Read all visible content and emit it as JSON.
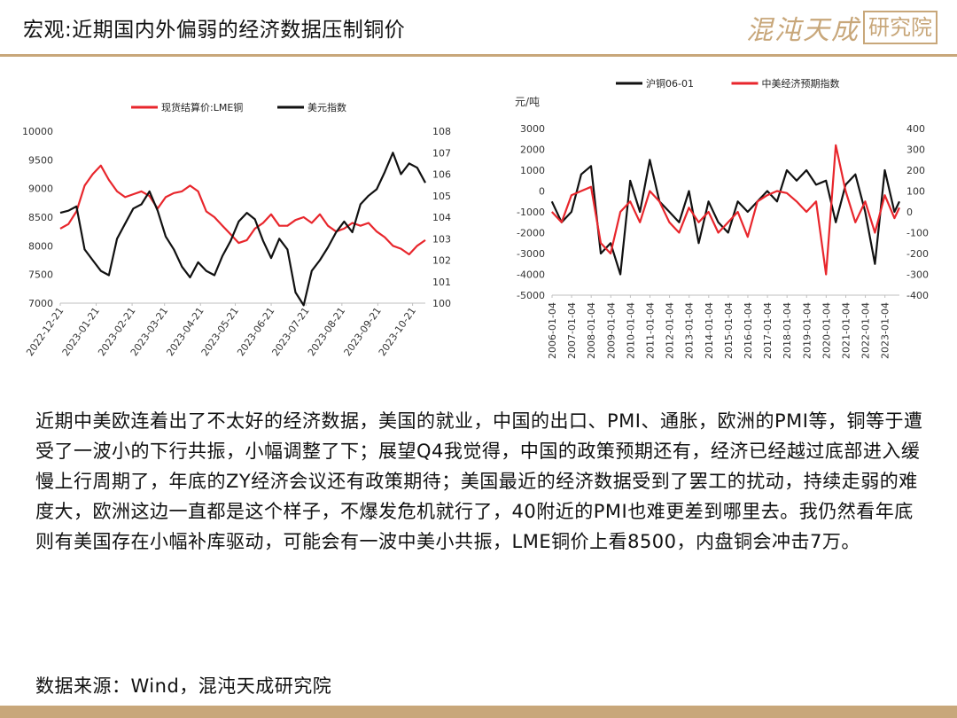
{
  "page": {
    "title": "宏观:近期国内外偏弱的经济数据压制铜价",
    "logo_text": "混沌天成",
    "logo_box_text": "研究院",
    "body_text": "近期中美欧连着出了不太好的经济数据，美国的就业，中国的出口、PMI、通胀，欧洲的PMI等，铜等于遭受了一波小的下行共振，小幅调整了下；展望Q4我觉得，中国的政策预期还有，经济已经越过底部进入缓慢上行周期了，年底的ZY经济会议还有政策期待；美国最近的经济数据受到了罢工的扰动，持续走弱的难度大，欧洲这边一直都是这个样子，不爆发危机就行了，40附近的PMI也难更差到哪里去。我仍然看年底则有美国存在小幅补库驱动，可能会有一波中美小共振，LME铜价上看8500，内盘铜会冲击7万。",
    "source": "数据来源：Wind，混沌天成研究院",
    "accent_color": "#c8a77a"
  },
  "chart_data": [
    {
      "type": "line",
      "title": "",
      "legend_position": "top",
      "x_tick_labels": [
        "2022-12-21",
        "2023-01-21",
        "2023-02-21",
        "2023-03-21",
        "2023-04-21",
        "2023-05-21",
        "2023-06-21",
        "2023-07-21",
        "2023-08-21",
        "2023-09-21",
        "2023-10-21"
      ],
      "x_start": "2022-12-21",
      "x_end": "2023-11-01",
      "y_left": {
        "ylim": [
          7000,
          10000
        ],
        "ticks": [
          7000,
          7500,
          8000,
          8500,
          9000,
          9500,
          10000
        ]
      },
      "y_right": {
        "ylim": [
          100,
          108
        ],
        "ticks": [
          100,
          101,
          102,
          103,
          104,
          105,
          106,
          107,
          108
        ]
      },
      "series": [
        {
          "name": "现货结算价:LME铜",
          "color": "#e8262c",
          "axis": "left",
          "x": [
            "2022-12-21",
            "2022-12-28",
            "2023-01-04",
            "2023-01-11",
            "2023-01-18",
            "2023-01-25",
            "2023-02-01",
            "2023-02-08",
            "2023-02-15",
            "2023-02-22",
            "2023-03-01",
            "2023-03-08",
            "2023-03-15",
            "2023-03-22",
            "2023-03-29",
            "2023-04-05",
            "2023-04-12",
            "2023-04-19",
            "2023-04-26",
            "2023-05-03",
            "2023-05-10",
            "2023-05-17",
            "2023-05-24",
            "2023-05-31",
            "2023-06-07",
            "2023-06-14",
            "2023-06-21",
            "2023-06-28",
            "2023-07-05",
            "2023-07-12",
            "2023-07-19",
            "2023-07-26",
            "2023-08-02",
            "2023-08-09",
            "2023-08-16",
            "2023-08-23",
            "2023-08-30",
            "2023-09-06",
            "2023-09-13",
            "2023-09-20",
            "2023-09-27",
            "2023-10-04",
            "2023-10-11",
            "2023-10-18",
            "2023-10-25",
            "2023-11-01"
          ],
          "values": [
            8300,
            8380,
            8600,
            9050,
            9250,
            9400,
            9150,
            8950,
            8850,
            8900,
            8950,
            8870,
            8650,
            8850,
            8920,
            8950,
            9050,
            8950,
            8600,
            8500,
            8350,
            8200,
            8050,
            8100,
            8300,
            8400,
            8550,
            8350,
            8350,
            8450,
            8500,
            8400,
            8550,
            8350,
            8250,
            8300,
            8400,
            8350,
            8400,
            8250,
            8150,
            8000,
            7950,
            7850,
            8000,
            8100
          ]
        },
        {
          "name": "美元指数",
          "color": "#111111",
          "axis": "right",
          "x": [
            "2022-12-21",
            "2022-12-28",
            "2023-01-04",
            "2023-01-11",
            "2023-01-18",
            "2023-01-25",
            "2023-02-01",
            "2023-02-08",
            "2023-02-15",
            "2023-02-22",
            "2023-03-01",
            "2023-03-08",
            "2023-03-15",
            "2023-03-22",
            "2023-03-29",
            "2023-04-05",
            "2023-04-12",
            "2023-04-19",
            "2023-04-26",
            "2023-05-03",
            "2023-05-10",
            "2023-05-17",
            "2023-05-24",
            "2023-05-31",
            "2023-06-07",
            "2023-06-14",
            "2023-06-21",
            "2023-06-28",
            "2023-07-05",
            "2023-07-12",
            "2023-07-19",
            "2023-07-26",
            "2023-08-02",
            "2023-08-09",
            "2023-08-16",
            "2023-08-23",
            "2023-08-30",
            "2023-09-06",
            "2023-09-13",
            "2023-09-20",
            "2023-09-27",
            "2023-10-04",
            "2023-10-11",
            "2023-10-18",
            "2023-10-25",
            "2023-11-01"
          ],
          "values": [
            104.2,
            104.3,
            104.5,
            102.5,
            102.0,
            101.5,
            101.3,
            103.0,
            103.7,
            104.4,
            104.6,
            105.2,
            104.3,
            103.1,
            102.5,
            101.7,
            101.2,
            101.9,
            101.5,
            101.3,
            102.2,
            102.9,
            103.8,
            104.2,
            103.9,
            102.9,
            102.1,
            103.0,
            102.5,
            100.5,
            99.9,
            101.5,
            102.0,
            102.6,
            103.3,
            103.8,
            103.3,
            104.6,
            105.0,
            105.3,
            106.1,
            107.0,
            106.0,
            106.5,
            106.3,
            105.6
          ]
        }
      ]
    },
    {
      "type": "line",
      "title": "",
      "legend_position": "top",
      "y_left_unit_label": "元/吨",
      "x_tick_labels": [
        "2006-01-04",
        "2007-01-04",
        "2008-01-04",
        "2009-01-04",
        "2010-01-04",
        "2011-01-04",
        "2012-01-04",
        "2013-01-04",
        "2014-01-04",
        "2015-01-04",
        "2016-01-04",
        "2017-01-04",
        "2018-01-04",
        "2019-01-04",
        "2020-01-04",
        "2021-01-04",
        "2022-01-04",
        "2023-01-04"
      ],
      "x_start": "2006-01-04",
      "x_end": "2023-10-01",
      "y_left": {
        "ylim": [
          -5000,
          3000
        ],
        "ticks": [
          -5000,
          -4000,
          -3000,
          -2000,
          -1000,
          0,
          1000,
          2000,
          3000
        ]
      },
      "y_right": {
        "ylim": [
          -400,
          400
        ],
        "ticks": [
          -400,
          -300,
          -200,
          -100,
          0,
          100,
          200,
          300,
          400
        ]
      },
      "series": [
        {
          "name": "沪铜06-01",
          "color": "#111111",
          "axis": "left",
          "x": [
            "2006-01",
            "2006-07",
            "2007-01",
            "2007-07",
            "2008-01",
            "2008-07",
            "2009-01",
            "2009-07",
            "2010-01",
            "2010-07",
            "2011-01",
            "2011-07",
            "2012-01",
            "2012-07",
            "2013-01",
            "2013-07",
            "2014-01",
            "2014-07",
            "2015-01",
            "2015-07",
            "2016-01",
            "2016-07",
            "2017-01",
            "2017-07",
            "2018-01",
            "2018-07",
            "2019-01",
            "2019-07",
            "2020-01",
            "2020-07",
            "2021-01",
            "2021-07",
            "2022-01",
            "2022-07",
            "2023-01",
            "2023-07",
            "2023-10"
          ],
          "values": [
            -500,
            -1500,
            -1000,
            800,
            1200,
            -3000,
            -2500,
            -4000,
            500,
            -1000,
            1500,
            -500,
            -1000,
            -1500,
            0,
            -2500,
            -500,
            -1500,
            -2000,
            -500,
            -1000,
            -500,
            0,
            -500,
            1000,
            500,
            1000,
            300,
            500,
            -1500,
            300,
            800,
            -1000,
            -3500,
            1000,
            -1000,
            -500
          ]
        },
        {
          "name": "中美经济预期指数",
          "color": "#e8262c",
          "axis": "right",
          "x": [
            "2006-01",
            "2006-07",
            "2007-01",
            "2007-07",
            "2008-01",
            "2008-07",
            "2009-01",
            "2009-07",
            "2010-01",
            "2010-07",
            "2011-01",
            "2011-07",
            "2012-01",
            "2012-07",
            "2013-01",
            "2013-07",
            "2014-01",
            "2014-07",
            "2015-01",
            "2015-07",
            "2016-01",
            "2016-07",
            "2017-01",
            "2017-07",
            "2018-01",
            "2018-07",
            "2019-01",
            "2019-07",
            "2020-01",
            "2020-07",
            "2021-01",
            "2021-07",
            "2022-01",
            "2022-07",
            "2023-01",
            "2023-07",
            "2023-10"
          ],
          "values": [
            0,
            -50,
            80,
            100,
            120,
            -150,
            -200,
            0,
            50,
            -50,
            100,
            50,
            -50,
            -100,
            20,
            -50,
            0,
            -100,
            -50,
            0,
            -120,
            50,
            80,
            100,
            90,
            50,
            0,
            50,
            -300,
            320,
            100,
            -50,
            50,
            -100,
            80,
            -30,
            20
          ]
        }
      ]
    }
  ]
}
